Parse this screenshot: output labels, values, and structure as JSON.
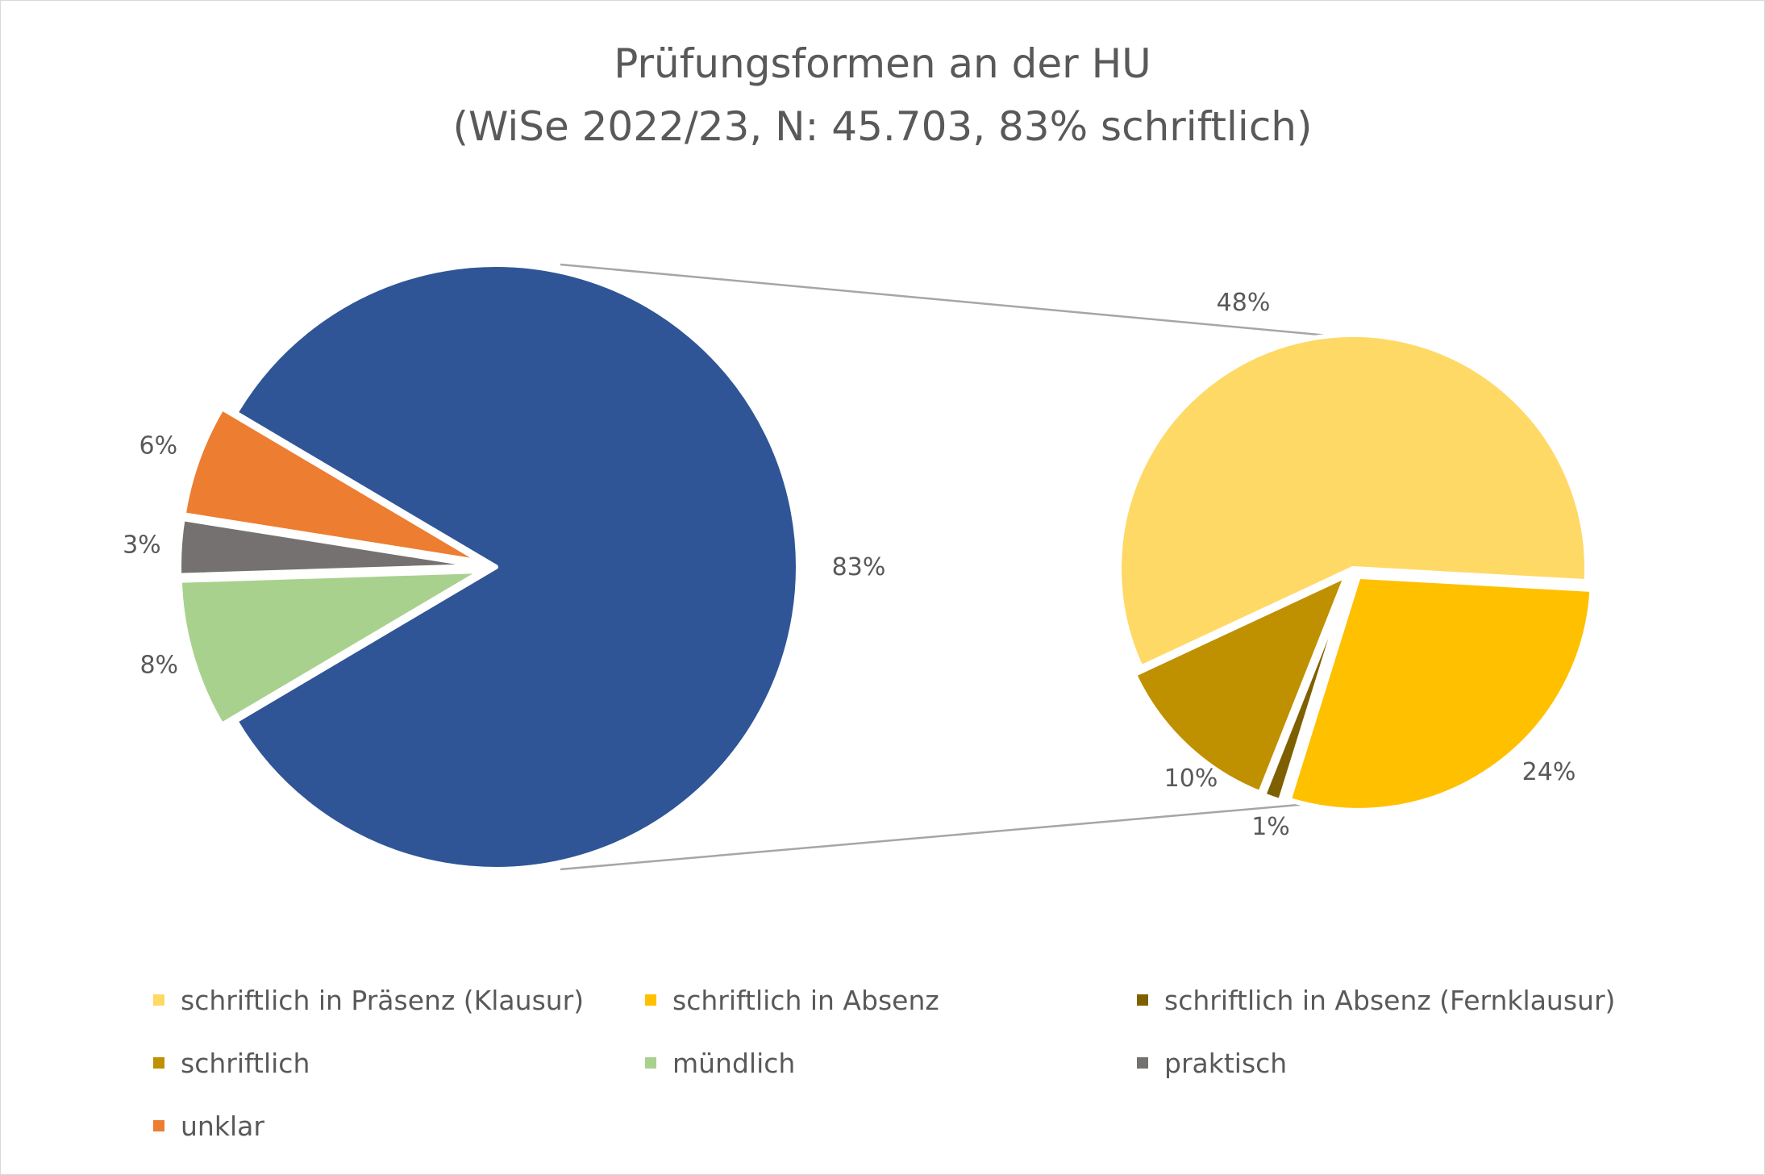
{
  "chart_data": {
    "type": "pie",
    "title": "Prüfungsformen an der HU",
    "subtitle": "(WiSe 2022/23, N: 45.703, 83% schriftlich)",
    "main_pie": [
      {
        "name": "schriftlich",
        "value": 83,
        "label": "83%",
        "color": "#2F5597"
      },
      {
        "name": "mündlich",
        "value": 8,
        "label": "8%",
        "color": "#A9D18E"
      },
      {
        "name": "praktisch",
        "value": 3,
        "label": "3%",
        "color": "#767171"
      },
      {
        "name": "unklar",
        "value": 6,
        "label": "6%",
        "color": "#ED7D31"
      }
    ],
    "detail_pie": [
      {
        "name": "schriftlich in Präsenz (Klausur)",
        "value": 48,
        "label": "48%",
        "color": "#FFD966"
      },
      {
        "name": "schriftlich in Absenz",
        "value": 24,
        "label": "24%",
        "color": "#FFC000"
      },
      {
        "name": "schriftlich in Absenz (Fernklausur)",
        "value": 1,
        "label": "1%",
        "color": "#7F6000"
      },
      {
        "name": "schriftlich",
        "value": 10,
        "label": "10%",
        "color": "#BF9000"
      }
    ],
    "legend": [
      {
        "label": "schriftlich in Präsenz (Klausur)",
        "color": "#FFD966"
      },
      {
        "label": "schriftlich in Absenz",
        "color": "#FFC000"
      },
      {
        "label": "schriftlich in Absenz (Fernklausur)",
        "color": "#7F6000"
      },
      {
        "label": "schriftlich",
        "color": "#BF9000"
      },
      {
        "label": "mündlich",
        "color": "#A9D18E"
      },
      {
        "label": "praktisch",
        "color": "#767171"
      },
      {
        "label": "unklar",
        "color": "#ED7D31"
      }
    ],
    "legend_position": "bottom"
  }
}
